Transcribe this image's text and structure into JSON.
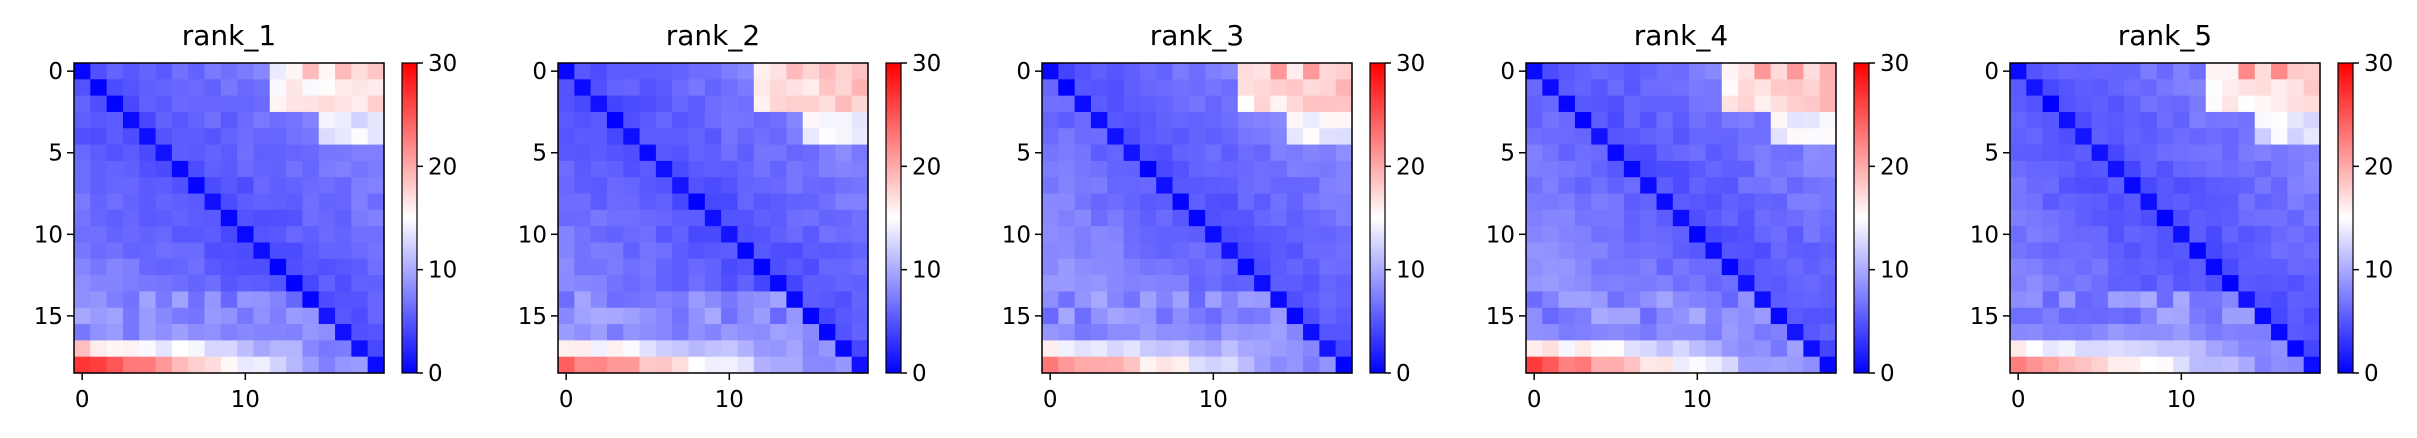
{
  "figure": {
    "background": "#ffffff"
  },
  "colormap": {
    "name": "bwr",
    "low": "#0000ff",
    "mid": "#ffffff",
    "high": "#ff0000"
  },
  "chart_data": [
    {
      "type": "heatmap",
      "title": "rank_1",
      "matrix_size": 19,
      "xticks": [
        0,
        10
      ],
      "yticks": [
        0,
        5,
        10,
        15
      ],
      "colorbar": {
        "range": [
          0,
          30
        ],
        "ticks": [
          0,
          10,
          20,
          30
        ]
      },
      "value_estimates": {
        "diagonal": 0,
        "upper_near_diagonal": 4,
        "upper_far_corner": 15,
        "upper_far_max": 19,
        "lower_near_diagonal": 4,
        "lower_far_rows_max": 26
      }
    },
    {
      "type": "heatmap",
      "title": "rank_2",
      "matrix_size": 19,
      "xticks": [
        0,
        10
      ],
      "yticks": [
        0,
        5,
        10,
        15
      ],
      "colorbar": {
        "range": [
          0,
          30
        ],
        "ticks": [
          0,
          10,
          20,
          30
        ]
      },
      "value_estimates": {
        "diagonal": 0,
        "upper_near_diagonal": 4,
        "upper_far_corner": 16,
        "upper_far_max": 19,
        "lower_near_diagonal": 4,
        "lower_far_rows_max": 23
      }
    },
    {
      "type": "heatmap",
      "title": "rank_3",
      "matrix_size": 19,
      "xticks": [
        0,
        10
      ],
      "yticks": [
        0,
        5,
        10,
        15
      ],
      "colorbar": {
        "range": [
          0,
          30
        ],
        "ticks": [
          0,
          10,
          20,
          30
        ]
      },
      "value_estimates": {
        "diagonal": 0,
        "upper_near_diagonal": 4,
        "upper_far_corner": 16,
        "upper_far_max": 21,
        "lower_near_diagonal": 5,
        "lower_far_rows_max": 21
      }
    },
    {
      "type": "heatmap",
      "title": "rank_4",
      "matrix_size": 19,
      "xticks": [
        0,
        10
      ],
      "yticks": [
        0,
        5,
        10,
        15
      ],
      "colorbar": {
        "range": [
          0,
          30
        ],
        "ticks": [
          0,
          10,
          20,
          30
        ]
      },
      "value_estimates": {
        "diagonal": 0,
        "upper_near_diagonal": 4,
        "upper_far_corner": 16,
        "upper_far_max": 21,
        "lower_near_diagonal": 5,
        "lower_far_rows_max": 24
      }
    },
    {
      "type": "heatmap",
      "title": "rank_5",
      "matrix_size": 19,
      "xticks": [
        0,
        10
      ],
      "yticks": [
        0,
        5,
        10,
        15
      ],
      "colorbar": {
        "range": [
          0,
          30
        ],
        "ticks": [
          0,
          10,
          20,
          30
        ]
      },
      "value_estimates": {
        "diagonal": 0,
        "upper_near_diagonal": 4,
        "upper_far_corner": 15,
        "upper_far_max": 22,
        "lower_near_diagonal": 4,
        "lower_far_rows_max": 22
      }
    }
  ]
}
